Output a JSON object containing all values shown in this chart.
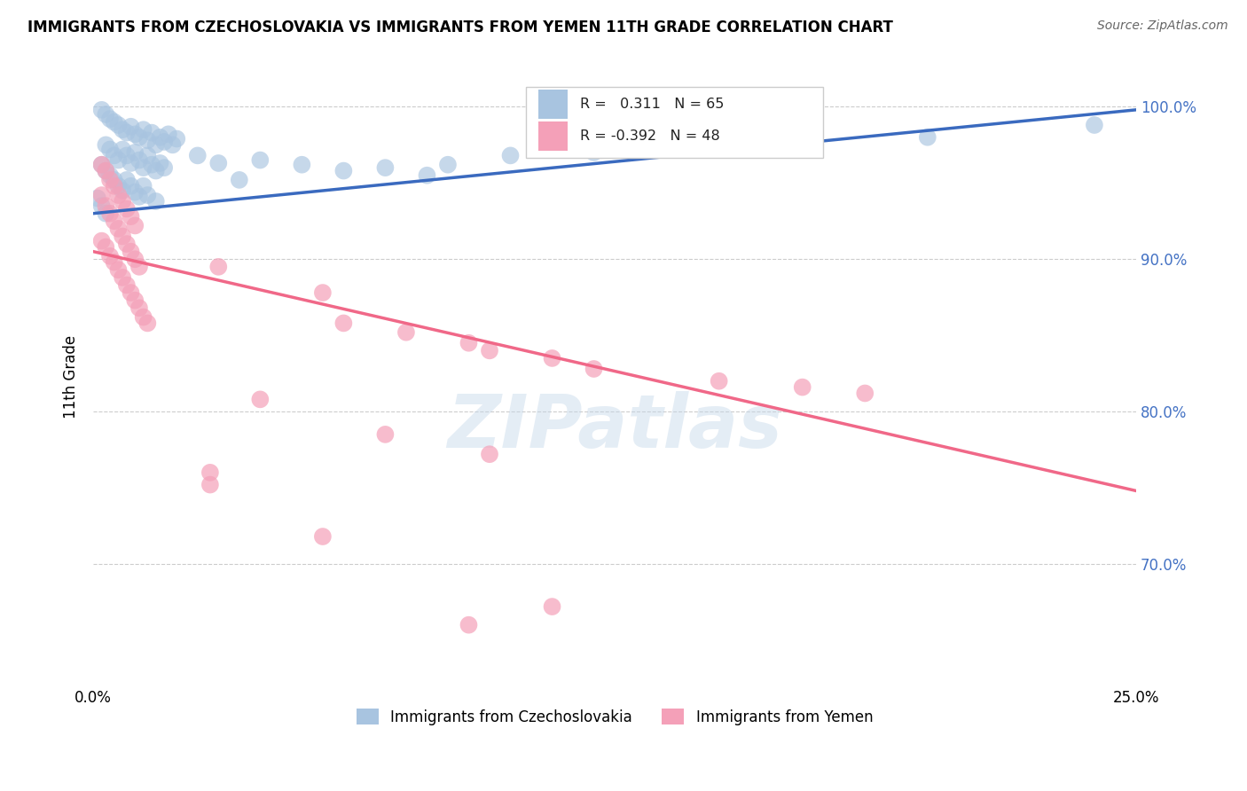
{
  "title": "IMMIGRANTS FROM CZECHOSLOVAKIA VS IMMIGRANTS FROM YEMEN 11TH GRADE CORRELATION CHART",
  "source": "Source: ZipAtlas.com",
  "ylabel": "11th Grade",
  "color_czech": "#a8c4e0",
  "color_yemen": "#f4a0b8",
  "color_line_czech": "#3a6abf",
  "color_line_yemen": "#f06888",
  "xlim": [
    0.0,
    0.25
  ],
  "ylim": [
    0.62,
    1.025
  ],
  "y_ticks": [
    0.7,
    0.8,
    0.9,
    1.0
  ],
  "y_tick_labels_right": [
    "70.0%",
    "80.0%",
    "90.0%",
    "100.0%"
  ],
  "czech_line_x": [
    0.0,
    0.25
  ],
  "czech_line_y": [
    0.93,
    0.998
  ],
  "yemen_line_x": [
    0.0,
    0.25
  ],
  "yemen_line_y": [
    0.905,
    0.748
  ],
  "czech_scatter": [
    [
      0.002,
      0.998
    ],
    [
      0.003,
      0.995
    ],
    [
      0.004,
      0.992
    ],
    [
      0.005,
      0.99
    ],
    [
      0.006,
      0.988
    ],
    [
      0.007,
      0.985
    ],
    [
      0.008,
      0.983
    ],
    [
      0.009,
      0.987
    ],
    [
      0.01,
      0.982
    ],
    [
      0.011,
      0.98
    ],
    [
      0.012,
      0.985
    ],
    [
      0.013,
      0.978
    ],
    [
      0.014,
      0.983
    ],
    [
      0.015,
      0.975
    ],
    [
      0.016,
      0.98
    ],
    [
      0.017,
      0.977
    ],
    [
      0.018,
      0.982
    ],
    [
      0.019,
      0.975
    ],
    [
      0.02,
      0.979
    ],
    [
      0.003,
      0.975
    ],
    [
      0.004,
      0.972
    ],
    [
      0.005,
      0.968
    ],
    [
      0.006,
      0.965
    ],
    [
      0.007,
      0.972
    ],
    [
      0.008,
      0.968
    ],
    [
      0.009,
      0.963
    ],
    [
      0.01,
      0.97
    ],
    [
      0.011,
      0.965
    ],
    [
      0.012,
      0.96
    ],
    [
      0.013,
      0.968
    ],
    [
      0.014,
      0.962
    ],
    [
      0.015,
      0.958
    ],
    [
      0.016,
      0.963
    ],
    [
      0.017,
      0.96
    ],
    [
      0.002,
      0.962
    ],
    [
      0.003,
      0.958
    ],
    [
      0.004,
      0.955
    ],
    [
      0.005,
      0.952
    ],
    [
      0.006,
      0.948
    ],
    [
      0.007,
      0.945
    ],
    [
      0.008,
      0.952
    ],
    [
      0.009,
      0.948
    ],
    [
      0.01,
      0.944
    ],
    [
      0.011,
      0.941
    ],
    [
      0.012,
      0.948
    ],
    [
      0.013,
      0.942
    ],
    [
      0.015,
      0.938
    ],
    [
      0.001,
      0.94
    ],
    [
      0.002,
      0.935
    ],
    [
      0.003,
      0.93
    ],
    [
      0.025,
      0.968
    ],
    [
      0.03,
      0.963
    ],
    [
      0.04,
      0.965
    ],
    [
      0.05,
      0.962
    ],
    [
      0.07,
      0.96
    ],
    [
      0.085,
      0.962
    ],
    [
      0.1,
      0.968
    ],
    [
      0.12,
      0.97
    ],
    [
      0.15,
      0.972
    ],
    [
      0.17,
      0.975
    ],
    [
      0.2,
      0.98
    ],
    [
      0.24,
      0.988
    ],
    [
      0.06,
      0.958
    ],
    [
      0.08,
      0.955
    ],
    [
      0.035,
      0.952
    ]
  ],
  "yemen_scatter": [
    [
      0.002,
      0.962
    ],
    [
      0.003,
      0.958
    ],
    [
      0.004,
      0.952
    ],
    [
      0.005,
      0.948
    ],
    [
      0.006,
      0.942
    ],
    [
      0.007,
      0.938
    ],
    [
      0.008,
      0.933
    ],
    [
      0.009,
      0.928
    ],
    [
      0.01,
      0.922
    ],
    [
      0.002,
      0.942
    ],
    [
      0.003,
      0.935
    ],
    [
      0.004,
      0.93
    ],
    [
      0.005,
      0.925
    ],
    [
      0.006,
      0.92
    ],
    [
      0.007,
      0.915
    ],
    [
      0.008,
      0.91
    ],
    [
      0.009,
      0.905
    ],
    [
      0.01,
      0.9
    ],
    [
      0.011,
      0.895
    ],
    [
      0.002,
      0.912
    ],
    [
      0.003,
      0.908
    ],
    [
      0.004,
      0.902
    ],
    [
      0.005,
      0.898
    ],
    [
      0.006,
      0.893
    ],
    [
      0.007,
      0.888
    ],
    [
      0.008,
      0.883
    ],
    [
      0.009,
      0.878
    ],
    [
      0.01,
      0.873
    ],
    [
      0.011,
      0.868
    ],
    [
      0.012,
      0.862
    ],
    [
      0.013,
      0.858
    ],
    [
      0.03,
      0.895
    ],
    [
      0.055,
      0.878
    ],
    [
      0.06,
      0.858
    ],
    [
      0.075,
      0.852
    ],
    [
      0.09,
      0.845
    ],
    [
      0.095,
      0.84
    ],
    [
      0.11,
      0.835
    ],
    [
      0.12,
      0.828
    ],
    [
      0.15,
      0.82
    ],
    [
      0.17,
      0.816
    ],
    [
      0.185,
      0.812
    ],
    [
      0.04,
      0.808
    ],
    [
      0.07,
      0.785
    ],
    [
      0.095,
      0.772
    ],
    [
      0.028,
      0.76
    ],
    [
      0.028,
      0.752
    ],
    [
      0.055,
      0.718
    ],
    [
      0.11,
      0.672
    ],
    [
      0.09,
      0.66
    ]
  ]
}
